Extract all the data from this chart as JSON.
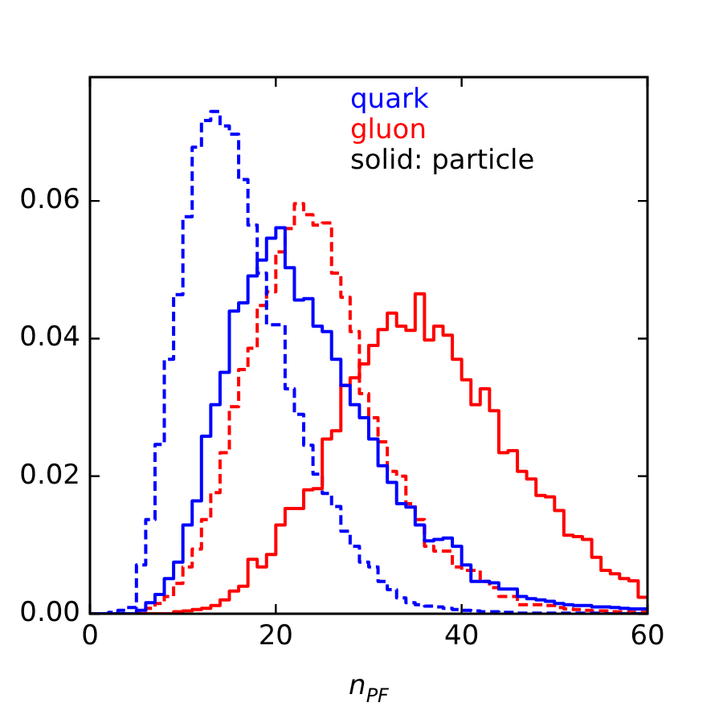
{
  "chart_data": {
    "type": "histogram",
    "xlabel": "n$_{PF}$",
    "legend": "top right",
    "annotations": [
      "solid: particle"
    ],
    "bins": [
      0,
      1,
      2,
      3,
      4,
      5,
      6,
      7,
      8,
      9,
      10,
      11,
      12,
      13,
      14,
      15,
      16,
      17,
      18,
      19,
      20,
      21,
      22,
      23,
      24,
      25,
      26,
      27,
      28,
      29,
      30,
      31,
      32,
      33,
      34,
      35,
      36,
      37,
      38,
      39,
      40,
      41,
      42,
      43,
      44,
      45,
      46,
      47,
      48,
      49,
      50,
      51,
      52,
      53,
      54,
      55,
      56,
      57,
      58,
      59,
      60
    ],
    "xlim": [
      0,
      60
    ],
    "xticks": [
      0,
      20,
      40,
      60
    ],
    "ylim": [
      0,
      0.078
    ],
    "yticks": [
      {
        "value": 0,
        "label": "0.00"
      },
      {
        "value": 0.02,
        "label": "0.02"
      },
      {
        "value": 0.04,
        "label": "0.04"
      },
      {
        "value": 0.06,
        "label": "0.06"
      }
    ],
    "grid": false,
    "series": [
      {
        "name": "quark",
        "color": "#0000ff",
        "line_style": "solid",
        "values": [
          0,
          0,
          0,
          0,
          0,
          0.0005,
          0.0016,
          0.0028,
          0.0051,
          0.0075,
          0.0129,
          0.0164,
          0.0258,
          0.0304,
          0.0351,
          0.044,
          0.0452,
          0.0491,
          0.0514,
          0.0546,
          0.0561,
          0.0503,
          0.0456,
          0.0458,
          0.0418,
          0.041,
          0.037,
          0.0332,
          0.0304,
          0.0285,
          0.0254,
          0.0215,
          0.0191,
          0.016,
          0.0155,
          0.0129,
          0.0106,
          0.0108,
          0.011,
          0.0098,
          0.0071,
          0.0047,
          0.0047,
          0.0045,
          0.0036,
          0.0036,
          0.0025,
          0.0022,
          0.002,
          0.0018,
          0.0015,
          0.0013,
          0.0012,
          0.0012,
          0.001,
          0.001,
          0.0009,
          0.0008,
          0.0007,
          0.0007
        ]
      },
      {
        "name": "gluon",
        "color": "#ff0000",
        "line_style": "solid",
        "values": [
          0,
          0,
          0,
          0,
          0,
          0,
          0,
          0,
          0,
          0.0003,
          0.0004,
          0.0006,
          0.0008,
          0.0012,
          0.002,
          0.0033,
          0.004,
          0.0079,
          0.0068,
          0.0086,
          0.0129,
          0.0153,
          0.0153,
          0.018,
          0.0182,
          0.0254,
          0.0266,
          0.0332,
          0.0343,
          0.0363,
          0.039,
          0.0413,
          0.0437,
          0.0418,
          0.0412,
          0.0465,
          0.0398,
          0.0418,
          0.0405,
          0.037,
          0.034,
          0.0304,
          0.0327,
          0.0295,
          0.0234,
          0.0237,
          0.0207,
          0.0196,
          0.0172,
          0.017,
          0.015,
          0.0114,
          0.0112,
          0.0108,
          0.0082,
          0.0063,
          0.0058,
          0.0051,
          0.0048,
          0.0024
        ]
      },
      {
        "color": "#0000fe",
        "line_style": "dashed",
        "values": [
          0,
          0,
          0.0002,
          0.0005,
          0.0009,
          0.0071,
          0.0137,
          0.0246,
          0.037,
          0.0464,
          0.0577,
          0.0678,
          0.0717,
          0.073,
          0.0709,
          0.0697,
          0.0631,
          0.0565,
          0.0495,
          0.042,
          0.042,
          0.0327,
          0.029,
          0.0245,
          0.0203,
          0.0175,
          0.0156,
          0.012,
          0.0098,
          0.0075,
          0.0068,
          0.0047,
          0.0035,
          0.0023,
          0.0016,
          0.0013,
          0.0011,
          0.001,
          0.0008,
          0.0006,
          0.0005,
          0.0004,
          0.0003,
          0.0003,
          0.0002,
          0.0002,
          0.0001,
          0.0001,
          0.0001,
          0.0001,
          0.0001,
          0.0001,
          0.0001,
          0.0001,
          0.0001,
          0,
          0,
          0,
          0,
          0
        ]
      },
      {
        "color": "#ff0000",
        "line_style": "dashed",
        "values": [
          0,
          0,
          0,
          0,
          0,
          0.0003,
          0.0008,
          0.0015,
          0.0025,
          0.0044,
          0.0068,
          0.0094,
          0.0137,
          0.0176,
          0.0234,
          0.0301,
          0.0355,
          0.0386,
          0.0448,
          0.0468,
          0.0526,
          0.056,
          0.0596,
          0.058,
          0.0565,
          0.0568,
          0.0495,
          0.046,
          0.041,
          0.032,
          0.0285,
          0.025,
          0.0207,
          0.02,
          0.016,
          0.0137,
          0.0098,
          0.0091,
          0.0091,
          0.0068,
          0.0063,
          0.0063,
          0.0047,
          0.0038,
          0.0025,
          0.0025,
          0.0013,
          0.0013,
          0.0013,
          0.0012,
          0.0009,
          0.0007,
          0.0006,
          0.0005,
          0.0004,
          0.0004,
          0.0003,
          0.0003,
          0.0002,
          0.0002
        ]
      }
    ]
  }
}
